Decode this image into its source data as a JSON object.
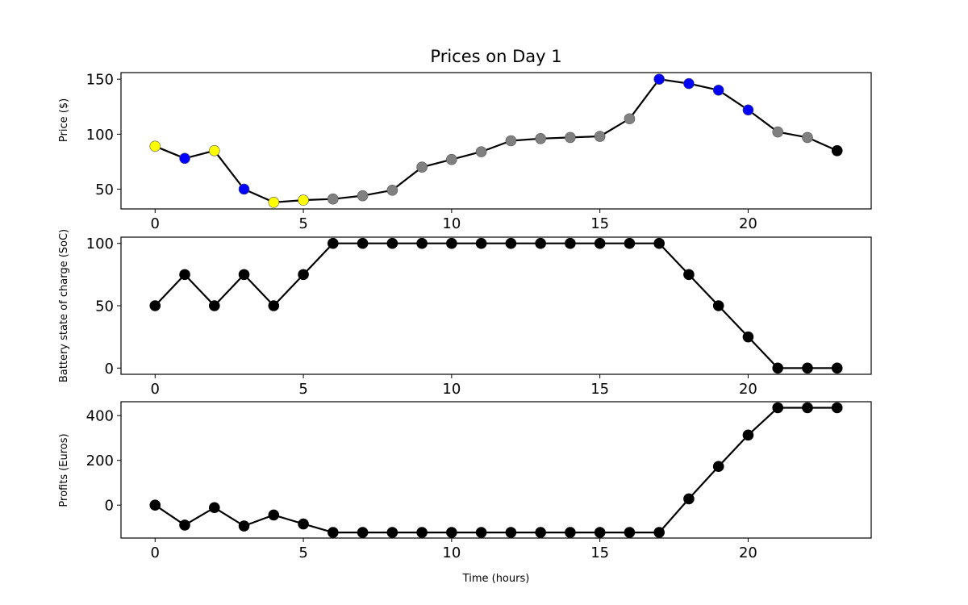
{
  "chart_data": [
    {
      "type": "line",
      "title": "Prices on Day 1",
      "xlabel": "",
      "ylabel": "Price ($)",
      "xlim": [
        -1.15,
        24.15
      ],
      "ylim": [
        32,
        156
      ],
      "xticks": [
        0,
        5,
        10,
        15,
        20
      ],
      "yticks": [
        50,
        100,
        150
      ],
      "grid": false,
      "line_color": "#000000",
      "series": [
        {
          "x": [
            0,
            1,
            2,
            3,
            4,
            5,
            6,
            7,
            8,
            9,
            10,
            11,
            12,
            13,
            14,
            15,
            16,
            17,
            18,
            19,
            20,
            21,
            22,
            23
          ],
          "values": [
            89,
            78,
            85,
            50,
            38,
            40,
            41,
            44,
            49,
            70,
            77,
            84,
            94,
            96,
            97,
            98,
            114,
            150,
            146,
            140,
            122,
            102,
            97,
            85
          ],
          "point_colors": [
            "yellow",
            "blue",
            "yellow",
            "blue",
            "yellow",
            "yellow",
            "gray",
            "gray",
            "gray",
            "gray",
            "gray",
            "gray",
            "gray",
            "gray",
            "gray",
            "gray",
            "gray",
            "blue",
            "blue",
            "blue",
            "blue",
            "gray",
            "gray",
            "black"
          ]
        }
      ]
    },
    {
      "type": "line",
      "title": "",
      "xlabel": "",
      "ylabel": "Battery state of charge (SoC)",
      "xlim": [
        -1.15,
        24.15
      ],
      "ylim": [
        -5,
        105
      ],
      "xticks": [
        0,
        5,
        10,
        15,
        20
      ],
      "yticks": [
        0,
        50,
        100
      ],
      "grid": false,
      "line_color": "#000000",
      "series": [
        {
          "x": [
            0,
            1,
            2,
            3,
            4,
            5,
            6,
            7,
            8,
            9,
            10,
            11,
            12,
            13,
            14,
            15,
            16,
            17,
            18,
            19,
            20,
            21,
            22,
            23
          ],
          "values": [
            50,
            75,
            50,
            75,
            50,
            75,
            100,
            100,
            100,
            100,
            100,
            100,
            100,
            100,
            100,
            100,
            100,
            100,
            75,
            50,
            25,
            0,
            0,
            0
          ],
          "point_colors": [
            "black"
          ]
        }
      ]
    },
    {
      "type": "line",
      "title": "",
      "xlabel": "Time (hours)",
      "ylabel": "Profits (Euros)",
      "xlim": [
        -1.15,
        24.15
      ],
      "ylim": [
        -147,
        462
      ],
      "xticks": [
        0,
        5,
        10,
        15,
        20
      ],
      "yticks": [
        0,
        200,
        400
      ],
      "grid": false,
      "line_color": "#000000",
      "series": [
        {
          "x": [
            0,
            1,
            2,
            3,
            4,
            5,
            6,
            7,
            8,
            9,
            10,
            11,
            12,
            13,
            14,
            15,
            16,
            17,
            18,
            19,
            20,
            21,
            22,
            23
          ],
          "values": [
            0,
            -89,
            -11,
            -93,
            -44,
            -84,
            -122,
            -122,
            -122,
            -122,
            -122,
            -122,
            -122,
            -122,
            -122,
            -122,
            -122,
            -122,
            28,
            173,
            313,
            435,
            435,
            435
          ],
          "point_colors": [
            "black"
          ]
        }
      ]
    }
  ],
  "colors": {
    "yellow": "#ffff00",
    "blue": "#0000ff",
    "gray": "#808080",
    "black": "#000000"
  }
}
